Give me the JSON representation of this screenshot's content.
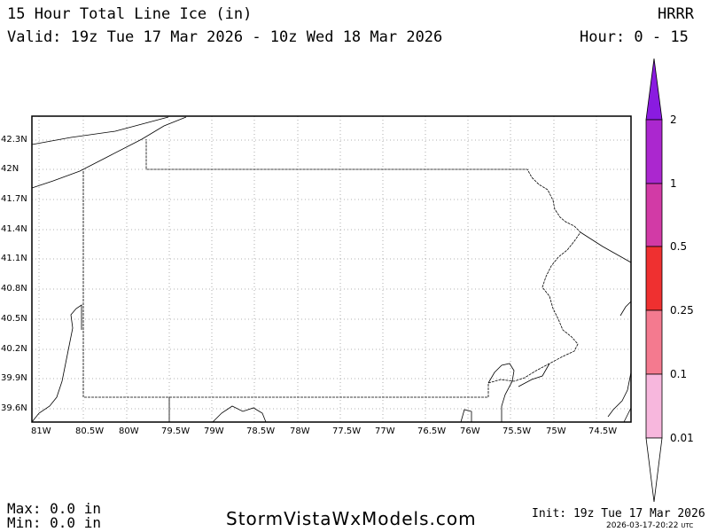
{
  "header": {
    "title": "15 Hour Total Line Ice (in)",
    "valid": "Valid: 19z Tue 17 Mar 2026 - 10z Wed 18 Mar 2026",
    "model": "HRRR",
    "hour_range": "Hour: 0 - 15"
  },
  "map": {
    "lat_ticks": [
      "42.3N",
      "42N",
      "41.7N",
      "41.4N",
      "41.1N",
      "40.8N",
      "40.5N",
      "40.2N",
      "39.9N",
      "39.6N"
    ],
    "lon_ticks": [
      "81W",
      "80.5W",
      "80W",
      "79.5W",
      "79W",
      "78.5W",
      "78W",
      "77.5W",
      "77W",
      "76.5W",
      "76W",
      "75.5W",
      "75W",
      "74.5W"
    ],
    "gridlines": "dotted",
    "boundary_color": "#000000"
  },
  "colorbar": {
    "levels": [
      "2",
      "1",
      "0.5",
      "0.25",
      "0.1",
      "0.01"
    ],
    "colors": {
      "above_2": "#8a1be0",
      "1_to_2": "#ab27cf",
      "0.5_to_1": "#d23aa6",
      "0.25_to_0.5": "#ef3030",
      "0.1_to_0.25": "#f47a8f",
      "0.01_to_0.1": "#f7b7dd"
    }
  },
  "footer": {
    "max": "Max: 0.0 in",
    "min": "Min: 0.0 in",
    "site": "StormVistaWxModels.com",
    "init": "Init: 19z Tue 17 Mar 2026",
    "timestamp": "2026-03-17-20:22",
    "timestamp_unit": "UTC"
  }
}
